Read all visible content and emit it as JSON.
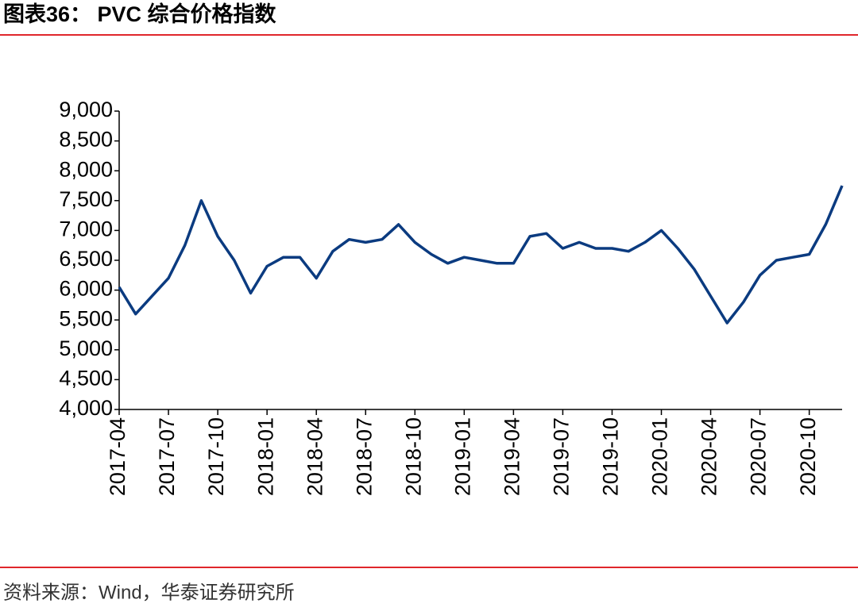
{
  "chart_data": {
    "type": "line",
    "title": "图表36：  PVC 综合价格指数",
    "source": "资料来源：Wind，华泰证券研究所",
    "x": [
      "2017-04",
      "2017-05",
      "2017-06",
      "2017-07",
      "2017-08",
      "2017-09",
      "2017-10",
      "2017-11",
      "2017-12",
      "2018-01",
      "2018-02",
      "2018-03",
      "2018-04",
      "2018-05",
      "2018-06",
      "2018-07",
      "2018-08",
      "2018-09",
      "2018-10",
      "2018-11",
      "2018-12",
      "2019-01",
      "2019-02",
      "2019-03",
      "2019-04",
      "2019-05",
      "2019-06",
      "2019-07",
      "2019-08",
      "2019-09",
      "2019-10",
      "2019-11",
      "2019-12",
      "2020-01",
      "2020-02",
      "2020-03",
      "2020-04",
      "2020-05",
      "2020-06",
      "2020-07",
      "2020-08",
      "2020-09",
      "2020-10",
      "2020-11",
      "2020-12"
    ],
    "series": [
      {
        "name": "PVC",
        "color": "#0b3b80",
        "values": [
          6050,
          5600,
          5900,
          6200,
          6750,
          7500,
          6900,
          6500,
          5950,
          6400,
          6550,
          6550,
          6200,
          6650,
          6850,
          6800,
          6850,
          7100,
          6800,
          6600,
          6450,
          6550,
          6500,
          6450,
          6450,
          6900,
          6950,
          6700,
          6800,
          6700,
          6700,
          6650,
          6800,
          7000,
          6700,
          6350,
          5900,
          5450,
          5800,
          6250,
          6500,
          6550,
          6600,
          7100,
          7750
        ]
      }
    ],
    "xlim": [
      "2017-04",
      "2020-12"
    ],
    "xticks": [
      "2017-04",
      "2017-07",
      "2017-10",
      "2018-01",
      "2018-04",
      "2018-07",
      "2018-10",
      "2019-01",
      "2019-04",
      "2019-07",
      "2019-10",
      "2020-01",
      "2020-04",
      "2020-07",
      "2020-10"
    ],
    "ylim": [
      4000,
      9000
    ],
    "yticks": [
      {
        "value": 4000,
        "label": "4,000"
      },
      {
        "value": 4500,
        "label": "4,500"
      },
      {
        "value": 5000,
        "label": "5,000"
      },
      {
        "value": 5500,
        "label": "5,500"
      },
      {
        "value": 6000,
        "label": "6,000"
      },
      {
        "value": 6500,
        "label": "6,500"
      },
      {
        "value": 7000,
        "label": "7,000"
      },
      {
        "value": 7500,
        "label": "7,500"
      },
      {
        "value": 8000,
        "label": "8,000"
      },
      {
        "value": 8500,
        "label": "8,500"
      },
      {
        "value": 9000,
        "label": "9,000"
      }
    ],
    "grid": false
  }
}
